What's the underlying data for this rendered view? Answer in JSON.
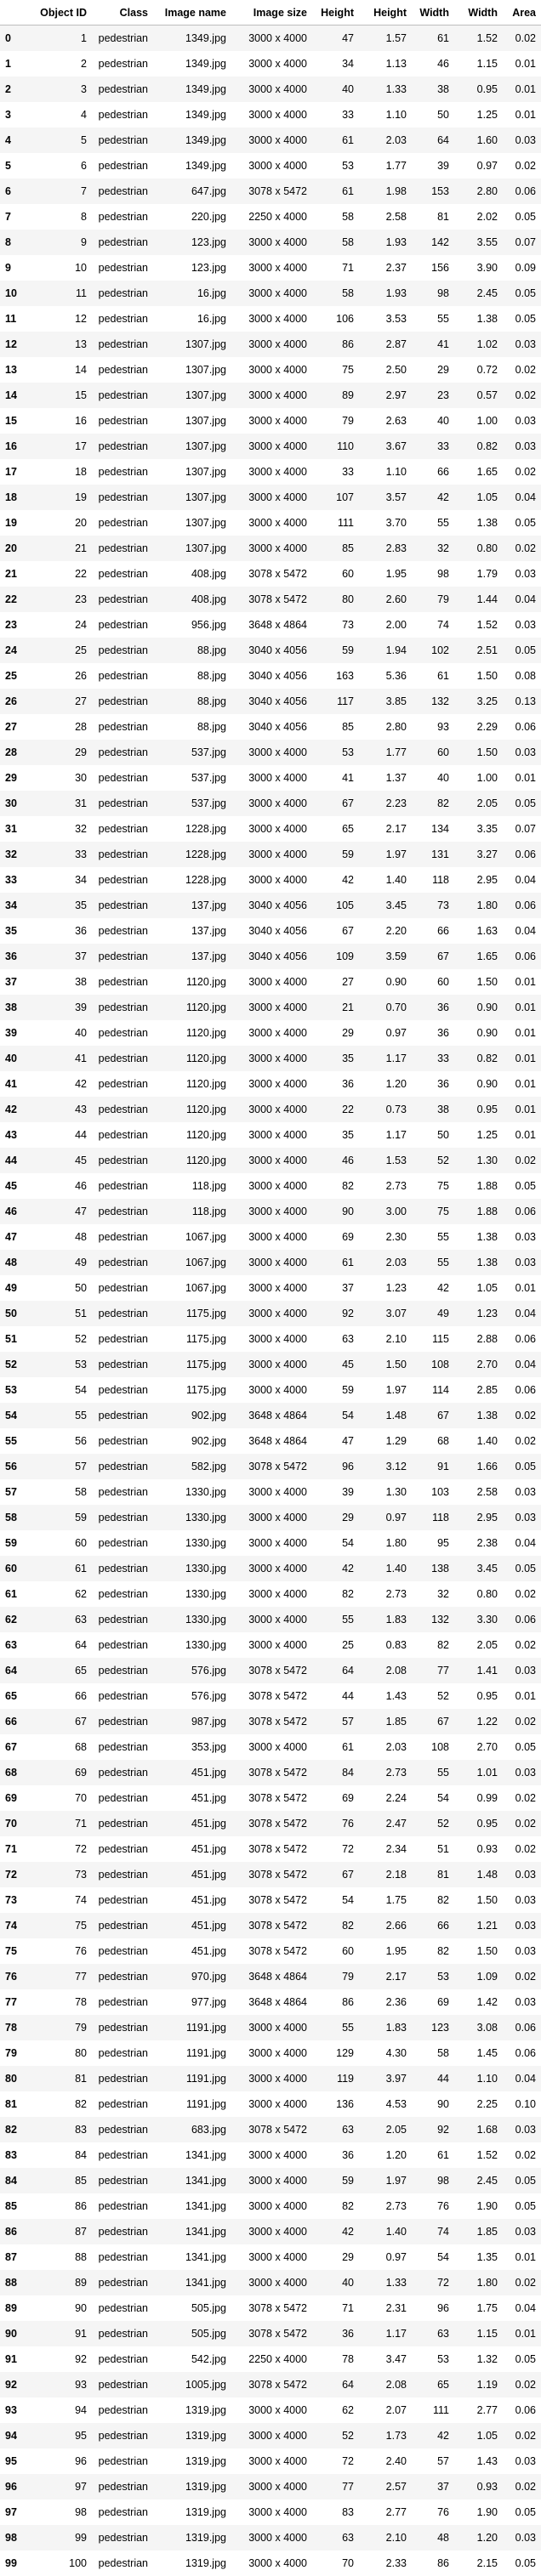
{
  "table": {
    "headers": [
      "",
      "Object ID",
      "Class",
      "Image name",
      "Image size",
      "Height",
      "Height",
      "Width",
      "Width",
      "Area"
    ],
    "rows": [
      [
        "0",
        "1",
        "pedestrian",
        "1349.jpg",
        "3000 x 4000",
        "47",
        "1.57",
        "61",
        "1.52",
        "0.02"
      ],
      [
        "1",
        "2",
        "pedestrian",
        "1349.jpg",
        "3000 x 4000",
        "34",
        "1.13",
        "46",
        "1.15",
        "0.01"
      ],
      [
        "2",
        "3",
        "pedestrian",
        "1349.jpg",
        "3000 x 4000",
        "40",
        "1.33",
        "38",
        "0.95",
        "0.01"
      ],
      [
        "3",
        "4",
        "pedestrian",
        "1349.jpg",
        "3000 x 4000",
        "33",
        "1.10",
        "50",
        "1.25",
        "0.01"
      ],
      [
        "4",
        "5",
        "pedestrian",
        "1349.jpg",
        "3000 x 4000",
        "61",
        "2.03",
        "64",
        "1.60",
        "0.03"
      ],
      [
        "5",
        "6",
        "pedestrian",
        "1349.jpg",
        "3000 x 4000",
        "53",
        "1.77",
        "39",
        "0.97",
        "0.02"
      ],
      [
        "6",
        "7",
        "pedestrian",
        "647.jpg",
        "3078 x 5472",
        "61",
        "1.98",
        "153",
        "2.80",
        "0.06"
      ],
      [
        "7",
        "8",
        "pedestrian",
        "220.jpg",
        "2250 x 4000",
        "58",
        "2.58",
        "81",
        "2.02",
        "0.05"
      ],
      [
        "8",
        "9",
        "pedestrian",
        "123.jpg",
        "3000 x 4000",
        "58",
        "1.93",
        "142",
        "3.55",
        "0.07"
      ],
      [
        "9",
        "10",
        "pedestrian",
        "123.jpg",
        "3000 x 4000",
        "71",
        "2.37",
        "156",
        "3.90",
        "0.09"
      ],
      [
        "10",
        "11",
        "pedestrian",
        "16.jpg",
        "3000 x 4000",
        "58",
        "1.93",
        "98",
        "2.45",
        "0.05"
      ],
      [
        "11",
        "12",
        "pedestrian",
        "16.jpg",
        "3000 x 4000",
        "106",
        "3.53",
        "55",
        "1.38",
        "0.05"
      ],
      [
        "12",
        "13",
        "pedestrian",
        "1307.jpg",
        "3000 x 4000",
        "86",
        "2.87",
        "41",
        "1.02",
        "0.03"
      ],
      [
        "13",
        "14",
        "pedestrian",
        "1307.jpg",
        "3000 x 4000",
        "75",
        "2.50",
        "29",
        "0.72",
        "0.02"
      ],
      [
        "14",
        "15",
        "pedestrian",
        "1307.jpg",
        "3000 x 4000",
        "89",
        "2.97",
        "23",
        "0.57",
        "0.02"
      ],
      [
        "15",
        "16",
        "pedestrian",
        "1307.jpg",
        "3000 x 4000",
        "79",
        "2.63",
        "40",
        "1.00",
        "0.03"
      ],
      [
        "16",
        "17",
        "pedestrian",
        "1307.jpg",
        "3000 x 4000",
        "110",
        "3.67",
        "33",
        "0.82",
        "0.03"
      ],
      [
        "17",
        "18",
        "pedestrian",
        "1307.jpg",
        "3000 x 4000",
        "33",
        "1.10",
        "66",
        "1.65",
        "0.02"
      ],
      [
        "18",
        "19",
        "pedestrian",
        "1307.jpg",
        "3000 x 4000",
        "107",
        "3.57",
        "42",
        "1.05",
        "0.04"
      ],
      [
        "19",
        "20",
        "pedestrian",
        "1307.jpg",
        "3000 x 4000",
        "111",
        "3.70",
        "55",
        "1.38",
        "0.05"
      ],
      [
        "20",
        "21",
        "pedestrian",
        "1307.jpg",
        "3000 x 4000",
        "85",
        "2.83",
        "32",
        "0.80",
        "0.02"
      ],
      [
        "21",
        "22",
        "pedestrian",
        "408.jpg",
        "3078 x 5472",
        "60",
        "1.95",
        "98",
        "1.79",
        "0.03"
      ],
      [
        "22",
        "23",
        "pedestrian",
        "408.jpg",
        "3078 x 5472",
        "80",
        "2.60",
        "79",
        "1.44",
        "0.04"
      ],
      [
        "23",
        "24",
        "pedestrian",
        "956.jpg",
        "3648 x 4864",
        "73",
        "2.00",
        "74",
        "1.52",
        "0.03"
      ],
      [
        "24",
        "25",
        "pedestrian",
        "88.jpg",
        "3040 x 4056",
        "59",
        "1.94",
        "102",
        "2.51",
        "0.05"
      ],
      [
        "25",
        "26",
        "pedestrian",
        "88.jpg",
        "3040 x 4056",
        "163",
        "5.36",
        "61",
        "1.50",
        "0.08"
      ],
      [
        "26",
        "27",
        "pedestrian",
        "88.jpg",
        "3040 x 4056",
        "117",
        "3.85",
        "132",
        "3.25",
        "0.13"
      ],
      [
        "27",
        "28",
        "pedestrian",
        "88.jpg",
        "3040 x 4056",
        "85",
        "2.80",
        "93",
        "2.29",
        "0.06"
      ],
      [
        "28",
        "29",
        "pedestrian",
        "537.jpg",
        "3000 x 4000",
        "53",
        "1.77",
        "60",
        "1.50",
        "0.03"
      ],
      [
        "29",
        "30",
        "pedestrian",
        "537.jpg",
        "3000 x 4000",
        "41",
        "1.37",
        "40",
        "1.00",
        "0.01"
      ],
      [
        "30",
        "31",
        "pedestrian",
        "537.jpg",
        "3000 x 4000",
        "67",
        "2.23",
        "82",
        "2.05",
        "0.05"
      ],
      [
        "31",
        "32",
        "pedestrian",
        "1228.jpg",
        "3000 x 4000",
        "65",
        "2.17",
        "134",
        "3.35",
        "0.07"
      ],
      [
        "32",
        "33",
        "pedestrian",
        "1228.jpg",
        "3000 x 4000",
        "59",
        "1.97",
        "131",
        "3.27",
        "0.06"
      ],
      [
        "33",
        "34",
        "pedestrian",
        "1228.jpg",
        "3000 x 4000",
        "42",
        "1.40",
        "118",
        "2.95",
        "0.04"
      ],
      [
        "34",
        "35",
        "pedestrian",
        "137.jpg",
        "3040 x 4056",
        "105",
        "3.45",
        "73",
        "1.80",
        "0.06"
      ],
      [
        "35",
        "36",
        "pedestrian",
        "137.jpg",
        "3040 x 4056",
        "67",
        "2.20",
        "66",
        "1.63",
        "0.04"
      ],
      [
        "36",
        "37",
        "pedestrian",
        "137.jpg",
        "3040 x 4056",
        "109",
        "3.59",
        "67",
        "1.65",
        "0.06"
      ],
      [
        "37",
        "38",
        "pedestrian",
        "1120.jpg",
        "3000 x 4000",
        "27",
        "0.90",
        "60",
        "1.50",
        "0.01"
      ],
      [
        "38",
        "39",
        "pedestrian",
        "1120.jpg",
        "3000 x 4000",
        "21",
        "0.70",
        "36",
        "0.90",
        "0.01"
      ],
      [
        "39",
        "40",
        "pedestrian",
        "1120.jpg",
        "3000 x 4000",
        "29",
        "0.97",
        "36",
        "0.90",
        "0.01"
      ],
      [
        "40",
        "41",
        "pedestrian",
        "1120.jpg",
        "3000 x 4000",
        "35",
        "1.17",
        "33",
        "0.82",
        "0.01"
      ],
      [
        "41",
        "42",
        "pedestrian",
        "1120.jpg",
        "3000 x 4000",
        "36",
        "1.20",
        "36",
        "0.90",
        "0.01"
      ],
      [
        "42",
        "43",
        "pedestrian",
        "1120.jpg",
        "3000 x 4000",
        "22",
        "0.73",
        "38",
        "0.95",
        "0.01"
      ],
      [
        "43",
        "44",
        "pedestrian",
        "1120.jpg",
        "3000 x 4000",
        "35",
        "1.17",
        "50",
        "1.25",
        "0.01"
      ],
      [
        "44",
        "45",
        "pedestrian",
        "1120.jpg",
        "3000 x 4000",
        "46",
        "1.53",
        "52",
        "1.30",
        "0.02"
      ],
      [
        "45",
        "46",
        "pedestrian",
        "118.jpg",
        "3000 x 4000",
        "82",
        "2.73",
        "75",
        "1.88",
        "0.05"
      ],
      [
        "46",
        "47",
        "pedestrian",
        "118.jpg",
        "3000 x 4000",
        "90",
        "3.00",
        "75",
        "1.88",
        "0.06"
      ],
      [
        "47",
        "48",
        "pedestrian",
        "1067.jpg",
        "3000 x 4000",
        "69",
        "2.30",
        "55",
        "1.38",
        "0.03"
      ],
      [
        "48",
        "49",
        "pedestrian",
        "1067.jpg",
        "3000 x 4000",
        "61",
        "2.03",
        "55",
        "1.38",
        "0.03"
      ],
      [
        "49",
        "50",
        "pedestrian",
        "1067.jpg",
        "3000 x 4000",
        "37",
        "1.23",
        "42",
        "1.05",
        "0.01"
      ],
      [
        "50",
        "51",
        "pedestrian",
        "1175.jpg",
        "3000 x 4000",
        "92",
        "3.07",
        "49",
        "1.23",
        "0.04"
      ],
      [
        "51",
        "52",
        "pedestrian",
        "1175.jpg",
        "3000 x 4000",
        "63",
        "2.10",
        "115",
        "2.88",
        "0.06"
      ],
      [
        "52",
        "53",
        "pedestrian",
        "1175.jpg",
        "3000 x 4000",
        "45",
        "1.50",
        "108",
        "2.70",
        "0.04"
      ],
      [
        "53",
        "54",
        "pedestrian",
        "1175.jpg",
        "3000 x 4000",
        "59",
        "1.97",
        "114",
        "2.85",
        "0.06"
      ],
      [
        "54",
        "55",
        "pedestrian",
        "902.jpg",
        "3648 x 4864",
        "54",
        "1.48",
        "67",
        "1.38",
        "0.02"
      ],
      [
        "55",
        "56",
        "pedestrian",
        "902.jpg",
        "3648 x 4864",
        "47",
        "1.29",
        "68",
        "1.40",
        "0.02"
      ],
      [
        "56",
        "57",
        "pedestrian",
        "582.jpg",
        "3078 x 5472",
        "96",
        "3.12",
        "91",
        "1.66",
        "0.05"
      ],
      [
        "57",
        "58",
        "pedestrian",
        "1330.jpg",
        "3000 x 4000",
        "39",
        "1.30",
        "103",
        "2.58",
        "0.03"
      ],
      [
        "58",
        "59",
        "pedestrian",
        "1330.jpg",
        "3000 x 4000",
        "29",
        "0.97",
        "118",
        "2.95",
        "0.03"
      ],
      [
        "59",
        "60",
        "pedestrian",
        "1330.jpg",
        "3000 x 4000",
        "54",
        "1.80",
        "95",
        "2.38",
        "0.04"
      ],
      [
        "60",
        "61",
        "pedestrian",
        "1330.jpg",
        "3000 x 4000",
        "42",
        "1.40",
        "138",
        "3.45",
        "0.05"
      ],
      [
        "61",
        "62",
        "pedestrian",
        "1330.jpg",
        "3000 x 4000",
        "82",
        "2.73",
        "32",
        "0.80",
        "0.02"
      ],
      [
        "62",
        "63",
        "pedestrian",
        "1330.jpg",
        "3000 x 4000",
        "55",
        "1.83",
        "132",
        "3.30",
        "0.06"
      ],
      [
        "63",
        "64",
        "pedestrian",
        "1330.jpg",
        "3000 x 4000",
        "25",
        "0.83",
        "82",
        "2.05",
        "0.02"
      ],
      [
        "64",
        "65",
        "pedestrian",
        "576.jpg",
        "3078 x 5472",
        "64",
        "2.08",
        "77",
        "1.41",
        "0.03"
      ],
      [
        "65",
        "66",
        "pedestrian",
        "576.jpg",
        "3078 x 5472",
        "44",
        "1.43",
        "52",
        "0.95",
        "0.01"
      ],
      [
        "66",
        "67",
        "pedestrian",
        "987.jpg",
        "3078 x 5472",
        "57",
        "1.85",
        "67",
        "1.22",
        "0.02"
      ],
      [
        "67",
        "68",
        "pedestrian",
        "353.jpg",
        "3000 x 4000",
        "61",
        "2.03",
        "108",
        "2.70",
        "0.05"
      ],
      [
        "68",
        "69",
        "pedestrian",
        "451.jpg",
        "3078 x 5472",
        "84",
        "2.73",
        "55",
        "1.01",
        "0.03"
      ],
      [
        "69",
        "70",
        "pedestrian",
        "451.jpg",
        "3078 x 5472",
        "69",
        "2.24",
        "54",
        "0.99",
        "0.02"
      ],
      [
        "70",
        "71",
        "pedestrian",
        "451.jpg",
        "3078 x 5472",
        "76",
        "2.47",
        "52",
        "0.95",
        "0.02"
      ],
      [
        "71",
        "72",
        "pedestrian",
        "451.jpg",
        "3078 x 5472",
        "72",
        "2.34",
        "51",
        "0.93",
        "0.02"
      ],
      [
        "72",
        "73",
        "pedestrian",
        "451.jpg",
        "3078 x 5472",
        "67",
        "2.18",
        "81",
        "1.48",
        "0.03"
      ],
      [
        "73",
        "74",
        "pedestrian",
        "451.jpg",
        "3078 x 5472",
        "54",
        "1.75",
        "82",
        "1.50",
        "0.03"
      ],
      [
        "74",
        "75",
        "pedestrian",
        "451.jpg",
        "3078 x 5472",
        "82",
        "2.66",
        "66",
        "1.21",
        "0.03"
      ],
      [
        "75",
        "76",
        "pedestrian",
        "451.jpg",
        "3078 x 5472",
        "60",
        "1.95",
        "82",
        "1.50",
        "0.03"
      ],
      [
        "76",
        "77",
        "pedestrian",
        "970.jpg",
        "3648 x 4864",
        "79",
        "2.17",
        "53",
        "1.09",
        "0.02"
      ],
      [
        "77",
        "78",
        "pedestrian",
        "977.jpg",
        "3648 x 4864",
        "86",
        "2.36",
        "69",
        "1.42",
        "0.03"
      ],
      [
        "78",
        "79",
        "pedestrian",
        "1191.jpg",
        "3000 x 4000",
        "55",
        "1.83",
        "123",
        "3.08",
        "0.06"
      ],
      [
        "79",
        "80",
        "pedestrian",
        "1191.jpg",
        "3000 x 4000",
        "129",
        "4.30",
        "58",
        "1.45",
        "0.06"
      ],
      [
        "80",
        "81",
        "pedestrian",
        "1191.jpg",
        "3000 x 4000",
        "119",
        "3.97",
        "44",
        "1.10",
        "0.04"
      ],
      [
        "81",
        "82",
        "pedestrian",
        "1191.jpg",
        "3000 x 4000",
        "136",
        "4.53",
        "90",
        "2.25",
        "0.10"
      ],
      [
        "82",
        "83",
        "pedestrian",
        "683.jpg",
        "3078 x 5472",
        "63",
        "2.05",
        "92",
        "1.68",
        "0.03"
      ],
      [
        "83",
        "84",
        "pedestrian",
        "1341.jpg",
        "3000 x 4000",
        "36",
        "1.20",
        "61",
        "1.52",
        "0.02"
      ],
      [
        "84",
        "85",
        "pedestrian",
        "1341.jpg",
        "3000 x 4000",
        "59",
        "1.97",
        "98",
        "2.45",
        "0.05"
      ],
      [
        "85",
        "86",
        "pedestrian",
        "1341.jpg",
        "3000 x 4000",
        "82",
        "2.73",
        "76",
        "1.90",
        "0.05"
      ],
      [
        "86",
        "87",
        "pedestrian",
        "1341.jpg",
        "3000 x 4000",
        "42",
        "1.40",
        "74",
        "1.85",
        "0.03"
      ],
      [
        "87",
        "88",
        "pedestrian",
        "1341.jpg",
        "3000 x 4000",
        "29",
        "0.97",
        "54",
        "1.35",
        "0.01"
      ],
      [
        "88",
        "89",
        "pedestrian",
        "1341.jpg",
        "3000 x 4000",
        "40",
        "1.33",
        "72",
        "1.80",
        "0.02"
      ],
      [
        "89",
        "90",
        "pedestrian",
        "505.jpg",
        "3078 x 5472",
        "71",
        "2.31",
        "96",
        "1.75",
        "0.04"
      ],
      [
        "90",
        "91",
        "pedestrian",
        "505.jpg",
        "3078 x 5472",
        "36",
        "1.17",
        "63",
        "1.15",
        "0.01"
      ],
      [
        "91",
        "92",
        "pedestrian",
        "542.jpg",
        "2250 x 4000",
        "78",
        "3.47",
        "53",
        "1.32",
        "0.05"
      ],
      [
        "92",
        "93",
        "pedestrian",
        "1005.jpg",
        "3078 x 5472",
        "64",
        "2.08",
        "65",
        "1.19",
        "0.02"
      ],
      [
        "93",
        "94",
        "pedestrian",
        "1319.jpg",
        "3000 x 4000",
        "62",
        "2.07",
        "111",
        "2.77",
        "0.06"
      ],
      [
        "94",
        "95",
        "pedestrian",
        "1319.jpg",
        "3000 x 4000",
        "52",
        "1.73",
        "42",
        "1.05",
        "0.02"
      ],
      [
        "95",
        "96",
        "pedestrian",
        "1319.jpg",
        "3000 x 4000",
        "72",
        "2.40",
        "57",
        "1.43",
        "0.03"
      ],
      [
        "96",
        "97",
        "pedestrian",
        "1319.jpg",
        "3000 x 4000",
        "77",
        "2.57",
        "37",
        "0.93",
        "0.02"
      ],
      [
        "97",
        "98",
        "pedestrian",
        "1319.jpg",
        "3000 x 4000",
        "83",
        "2.77",
        "76",
        "1.90",
        "0.05"
      ],
      [
        "98",
        "99",
        "pedestrian",
        "1319.jpg",
        "3000 x 4000",
        "63",
        "2.10",
        "48",
        "1.20",
        "0.03"
      ],
      [
        "99",
        "100",
        "pedestrian",
        "1319.jpg",
        "3000 x 4000",
        "70",
        "2.33",
        "86",
        "2.15",
        "0.05"
      ]
    ]
  }
}
